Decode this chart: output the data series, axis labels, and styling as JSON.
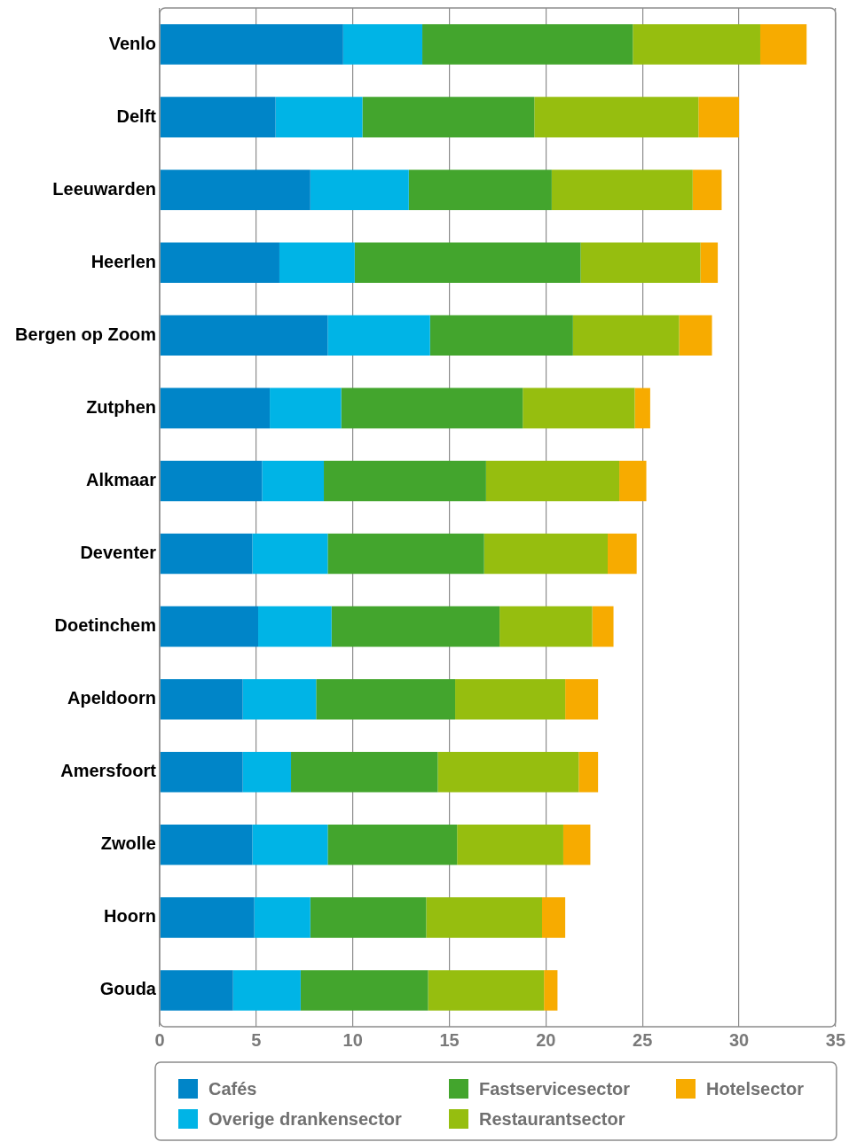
{
  "chart_data": {
    "type": "bar",
    "orientation": "horizontal",
    "stacked": true,
    "categories": [
      "Venlo",
      "Delft",
      "Leeuwarden",
      "Heerlen",
      "Bergen op Zoom",
      "Zutphen",
      "Alkmaar",
      "Deventer",
      "Doetinchem",
      "Apeldoorn",
      "Amersfoort",
      "Zwolle",
      "Hoorn",
      "Gouda"
    ],
    "series": [
      {
        "name": "Cafés",
        "color": "#0085c8",
        "values": [
          9.5,
          6.0,
          7.8,
          6.2,
          8.7,
          5.7,
          5.3,
          4.8,
          5.1,
          4.3,
          4.3,
          4.8,
          4.9,
          3.8
        ]
      },
      {
        "name": "Overige drankensector",
        "color": "#00b4e6",
        "values": [
          4.1,
          4.5,
          5.1,
          3.9,
          5.3,
          3.7,
          3.2,
          3.9,
          3.8,
          3.8,
          2.5,
          3.9,
          2.9,
          3.5
        ]
      },
      {
        "name": "Fastservicesector",
        "color": "#43a52d",
        "values": [
          10.9,
          8.9,
          7.4,
          11.7,
          7.4,
          9.4,
          8.4,
          8.1,
          8.7,
          7.2,
          7.6,
          6.7,
          6.0,
          6.6
        ]
      },
      {
        "name": "Restaurantsector",
        "color": "#96be0f",
        "values": [
          6.6,
          8.5,
          7.3,
          6.2,
          5.5,
          5.8,
          6.9,
          6.4,
          4.8,
          5.7,
          7.3,
          5.5,
          6.0,
          6.0
        ]
      },
      {
        "name": "Hotelsector",
        "color": "#f7ab00",
        "values": [
          2.4,
          2.1,
          1.5,
          0.9,
          1.7,
          0.8,
          1.4,
          1.5,
          1.1,
          1.7,
          1.0,
          1.4,
          1.2,
          0.7
        ]
      }
    ],
    "xlim": [
      0,
      35
    ],
    "xticks": [
      0,
      5,
      10,
      15,
      20,
      25,
      30,
      35
    ],
    "grid": "x",
    "legend": "bottom"
  }
}
